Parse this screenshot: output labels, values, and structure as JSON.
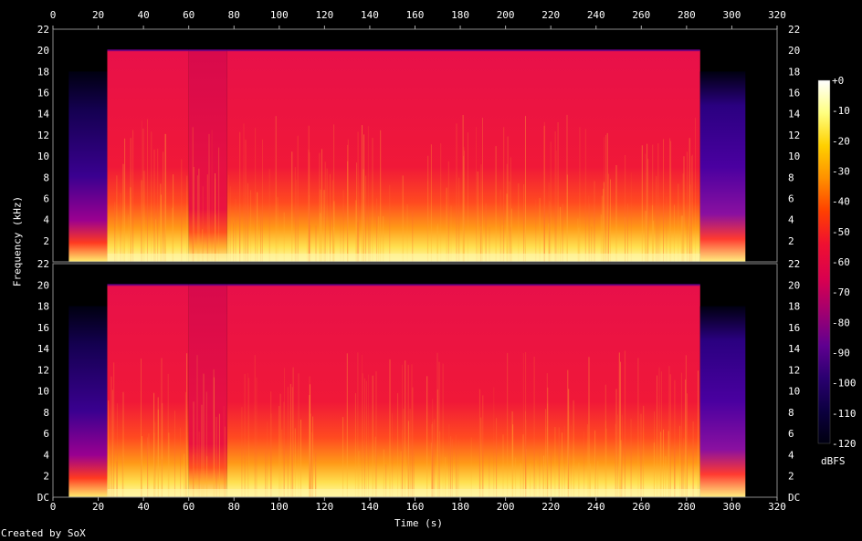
{
  "chart_data": {
    "type": "heatmap",
    "title": "",
    "xlabel": "Time (s)",
    "ylabel": "Frequency (kHz)",
    "xlim": [
      0,
      320
    ],
    "ylim": [
      0,
      22
    ],
    "x_ticks": [
      "0",
      "20",
      "40",
      "60",
      "80",
      "100",
      "120",
      "140",
      "160",
      "180",
      "200",
      "220",
      "240",
      "260",
      "280",
      "300",
      "320"
    ],
    "y_ticks_top": [
      "2",
      "4",
      "6",
      "8",
      "10",
      "12",
      "14",
      "16",
      "18",
      "20",
      "22"
    ],
    "y_ticks_bottom": [
      "DC",
      "2",
      "4",
      "6",
      "8",
      "10",
      "12",
      "14",
      "16",
      "18",
      "20",
      "22"
    ],
    "channels": 2,
    "colorbar": {
      "label": "dBFS",
      "range": [
        -120,
        0
      ],
      "ticks": [
        "+0",
        "-10",
        "-20",
        "-30",
        "-40",
        "-50",
        "-60",
        "-70",
        "-80",
        "-90",
        "-100",
        "-110",
        "-120"
      ],
      "colors": [
        "#ffffff",
        "#ffff80",
        "#ffd000",
        "#ff9000",
        "#ff4000",
        "#f01030",
        "#d80050",
        "#a00070",
        "#600090",
        "#2a0070",
        "#0c0040",
        "#000010"
      ]
    },
    "segments": [
      {
        "t0": 0,
        "t1": 7,
        "cutoff_khz": 0,
        "level": "silence"
      },
      {
        "t0": 7,
        "t1": 24,
        "cutoff_khz": 18,
        "level": "fade-in"
      },
      {
        "t0": 24,
        "t1": 60,
        "cutoff_khz": 20,
        "level": "loud"
      },
      {
        "t0": 60,
        "t1": 77,
        "cutoff_khz": 20,
        "level": "loud-thin"
      },
      {
        "t0": 77,
        "t1": 286,
        "cutoff_khz": 20,
        "level": "loud"
      },
      {
        "t0": 286,
        "t1": 306,
        "cutoff_khz": 18,
        "level": "fade-out"
      },
      {
        "t0": 306,
        "t1": 320,
        "cutoff_khz": 0,
        "level": "silence"
      }
    ]
  },
  "footer": {
    "credit": "Created by SoX"
  }
}
